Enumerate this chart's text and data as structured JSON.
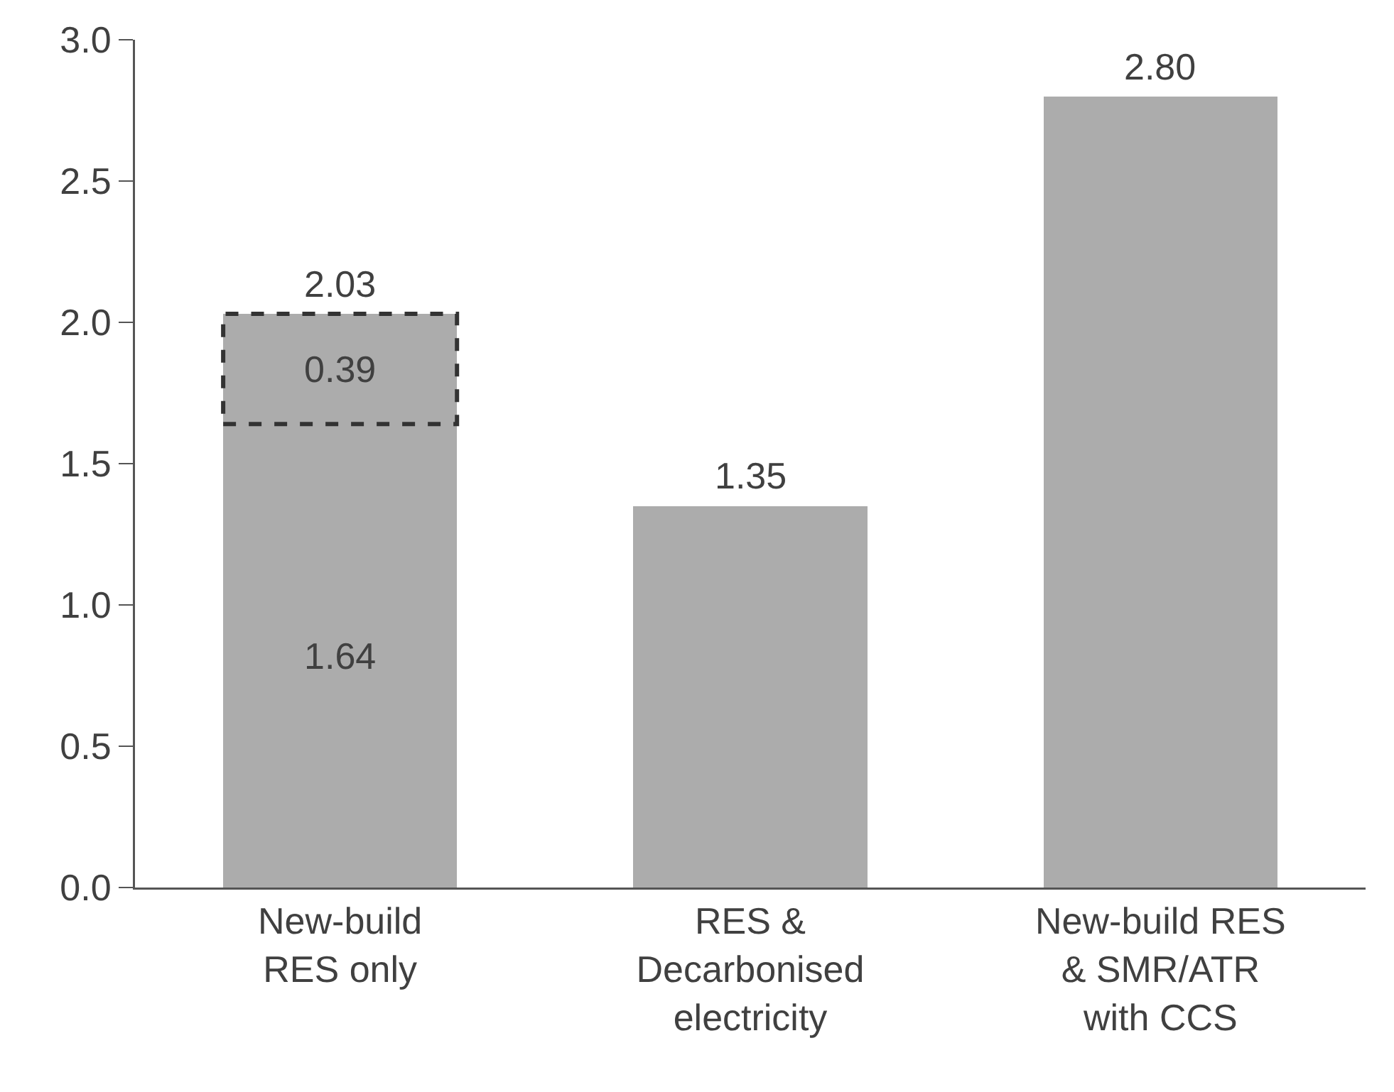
{
  "chart_data": {
    "type": "bar",
    "stacked": true,
    "categories": [
      "New-build\nRES only",
      "RES &\nDecarbonised\nelectricity",
      "New-build RES\n& SMR/ATR\nwith CCS"
    ],
    "series": [
      {
        "color": "#acacac",
        "values": [
          1.64,
          1.35,
          2.8
        ],
        "value_labels": [
          "1.64",
          null,
          null
        ]
      },
      {
        "color": "#acacac",
        "values": [
          0.39,
          null,
          null
        ],
        "value_labels": [
          "0.39",
          null,
          null
        ],
        "line_style": "dashed"
      }
    ],
    "totals": [
      "2.03",
      "1.35",
      "2.80"
    ],
    "ylim": [
      0,
      3
    ],
    "yticks": [
      {
        "value": 0,
        "label": "0.0"
      },
      {
        "value": 0.5,
        "label": "0.5"
      },
      {
        "value": 1,
        "label": "1.0"
      },
      {
        "value": 1.5,
        "label": "1.5"
      },
      {
        "value": 2,
        "label": "2.0"
      },
      {
        "value": 2.5,
        "label": "2.5"
      },
      {
        "value": 3,
        "label": "3.0"
      }
    ]
  }
}
